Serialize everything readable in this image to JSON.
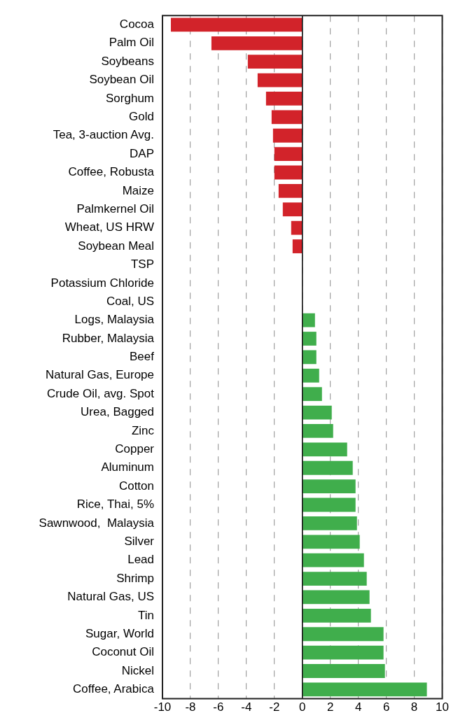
{
  "chart_data": {
    "type": "bar",
    "orientation": "horizontal",
    "categories": [
      "Cocoa",
      "Palm Oil",
      "Soybeans",
      "Soybean Oil",
      "Sorghum",
      "Gold",
      "Tea, 3-auction Avg.",
      "DAP",
      "Coffee, Robusta",
      "Maize",
      "Palmkernel Oil",
      "Wheat, US HRW",
      "Soybean Meal",
      "TSP",
      "Potassium Chloride",
      "Coal, US",
      "Logs, Malaysia",
      "Rubber, Malaysia",
      "Beef",
      "Natural Gas, Europe",
      "Crude Oil, avg. Spot",
      "Urea, Bagged",
      "Zinc",
      "Copper",
      "Aluminum",
      "Cotton",
      "Rice, Thai, 5%",
      "Sawnwood,  Malaysia",
      "Silver",
      "Lead",
      "Shrimp",
      "Natural Gas, US",
      "Tin",
      "Sugar, World",
      "Coconut Oil",
      "Nickel",
      "Coffee, Arabica"
    ],
    "values": [
      -9.4,
      -6.5,
      -3.9,
      -3.2,
      -2.6,
      -2.2,
      -2.1,
      -2.0,
      -2.0,
      -1.7,
      -1.4,
      -0.8,
      -0.7,
      0,
      0,
      0,
      0.9,
      1.0,
      1.0,
      1.2,
      1.4,
      2.1,
      2.2,
      3.2,
      3.6,
      3.8,
      3.8,
      3.9,
      4.1,
      4.4,
      4.6,
      4.8,
      4.9,
      5.8,
      5.8,
      5.9,
      8.9
    ],
    "colors": [
      "#d2232a",
      "#d2232a",
      "#d2232a",
      "#d2232a",
      "#d2232a",
      "#d2232a",
      "#d2232a",
      "#d2232a",
      "#d2232a",
      "#d2232a",
      "#d2232a",
      "#d2232a",
      "#d2232a",
      "#d2232a",
      "#d2232a",
      "#40ae4c",
      "#40ae4c",
      "#40ae4c",
      "#40ae4c",
      "#40ae4c",
      "#40ae4c",
      "#40ae4c",
      "#40ae4c",
      "#40ae4c",
      "#40ae4c",
      "#40ae4c",
      "#40ae4c",
      "#40ae4c",
      "#40ae4c",
      "#40ae4c",
      "#40ae4c",
      "#40ae4c",
      "#40ae4c",
      "#40ae4c",
      "#40ae4c",
      "#40ae4c",
      "#40ae4c"
    ],
    "xlim": [
      -10,
      10
    ],
    "xticks": [
      -10,
      -8,
      -6,
      -4,
      -2,
      0,
      2,
      4,
      6,
      8,
      10
    ],
    "grid": "x",
    "legend": false
  }
}
